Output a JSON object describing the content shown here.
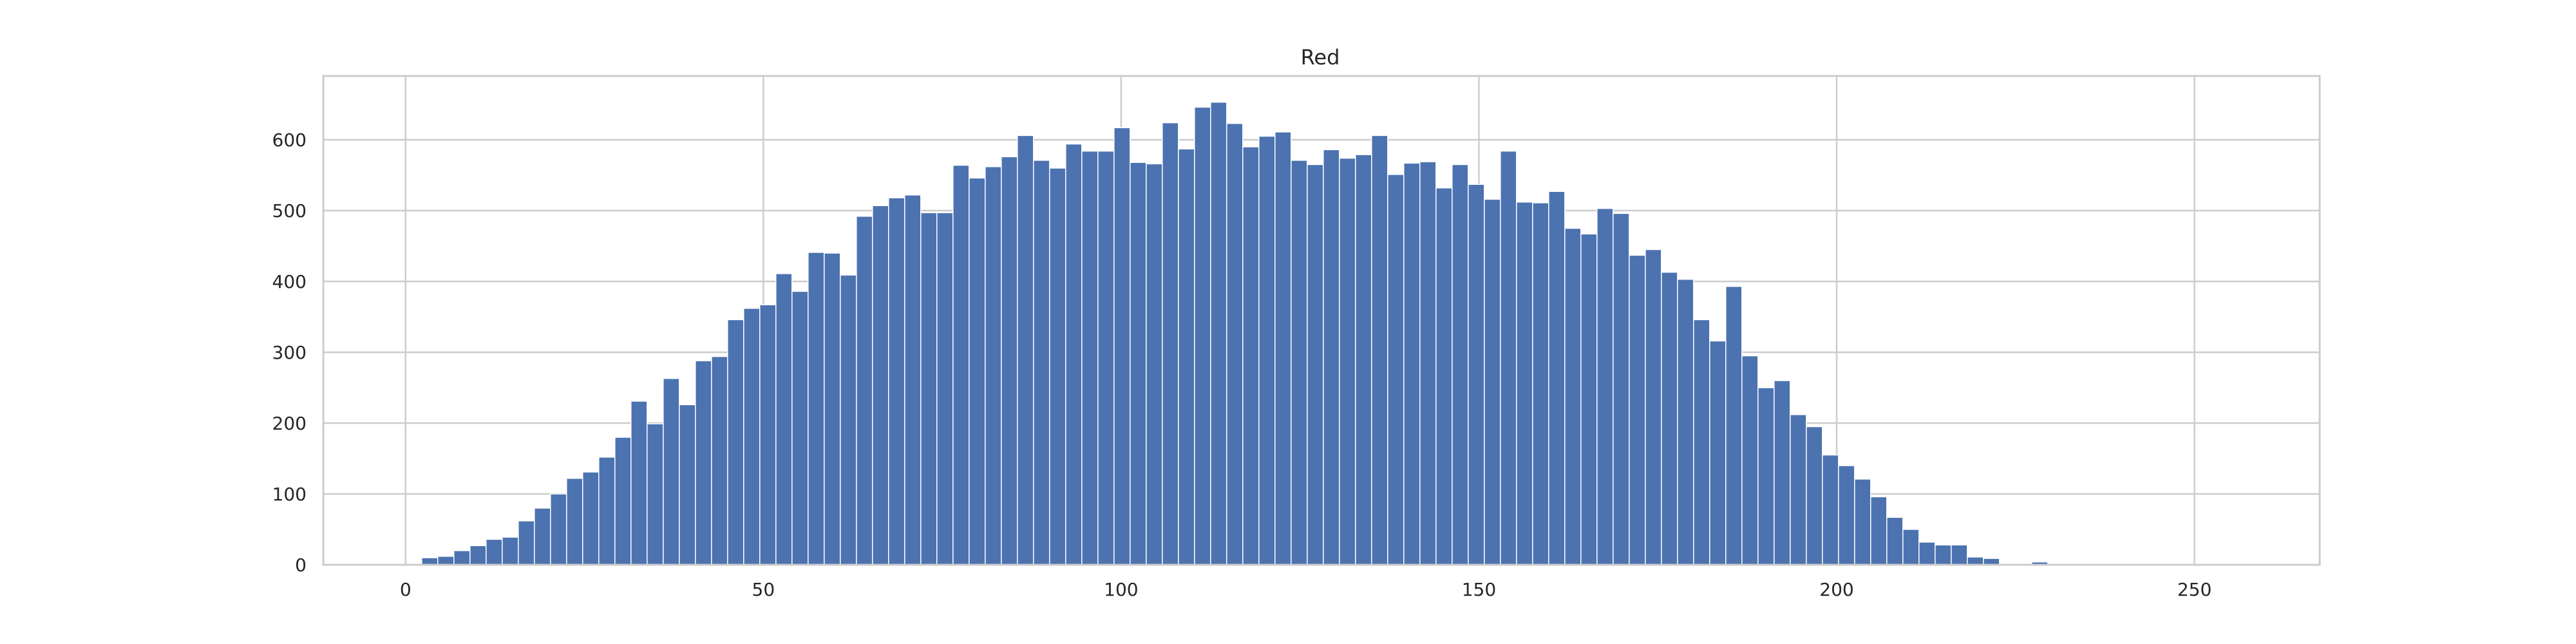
{
  "chart_data": {
    "type": "bar",
    "title": "Red",
    "xlabel": "",
    "ylabel": "",
    "bin_width": 2.25,
    "bins_start": 2.25,
    "values": [
      10,
      12,
      20,
      27,
      36,
      39,
      62,
      80,
      100,
      122,
      131,
      152,
      180,
      231,
      199,
      263,
      226,
      288,
      294,
      346,
      362,
      367,
      411,
      386,
      441,
      440,
      409,
      492,
      507,
      518,
      522,
      497,
      497,
      564,
      546,
      562,
      576,
      606,
      571,
      560,
      594,
      584,
      584,
      617,
      568,
      566,
      624,
      587,
      646,
      653,
      623,
      590,
      605,
      611,
      571,
      565,
      586,
      574,
      579,
      606,
      551,
      567,
      569,
      532,
      565,
      537,
      516,
      584,
      512,
      511,
      527,
      475,
      467,
      503,
      496,
      437,
      445,
      413,
      403,
      346,
      316,
      393,
      295,
      250,
      260,
      212,
      195,
      155,
      140,
      121,
      96,
      67,
      50,
      32,
      28,
      28,
      11,
      9,
      0,
      0,
      4,
      0,
      0,
      0,
      0,
      0,
      0,
      0,
      0,
      0,
      0,
      0,
      0,
      0,
      0,
      0
    ],
    "xticks": [
      0,
      50,
      100,
      150,
      200,
      250
    ],
    "yticks": [
      0,
      100,
      200,
      300,
      400,
      500,
      600
    ],
    "xlim": [
      -11.5,
      267.5
    ],
    "ylim": [
      0,
      690
    ],
    "grid": true,
    "colors": {
      "bar": "#4c72b0",
      "grid": "#cccccc",
      "frame": "#cccccc",
      "text": "#262626"
    }
  }
}
